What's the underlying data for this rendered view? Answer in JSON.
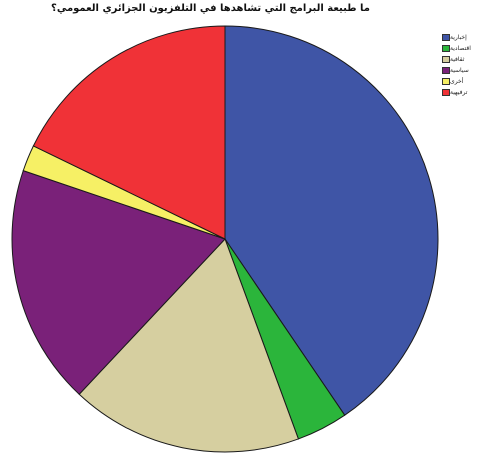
{
  "chart_data": {
    "type": "pie",
    "title": "ما طبيعة البرامج التي تشاهدها في التلفزيون الجزائري العمومي؟",
    "legend_position": "top-right",
    "categories": [
      "إخبارية",
      "اقتصادية",
      "ثقافية",
      "سياسية",
      "أخرى",
      "ترفيهية"
    ],
    "colors": [
      "#3F55A6",
      "#2BB53B",
      "#D6CFA0",
      "#7A2179",
      "#F6F065",
      "#F03237"
    ],
    "values": [
      40.5,
      3.9,
      17.6,
      18.2,
      2.0,
      17.8
    ],
    "start_angle_deg": 0,
    "direction": "clockwise"
  }
}
